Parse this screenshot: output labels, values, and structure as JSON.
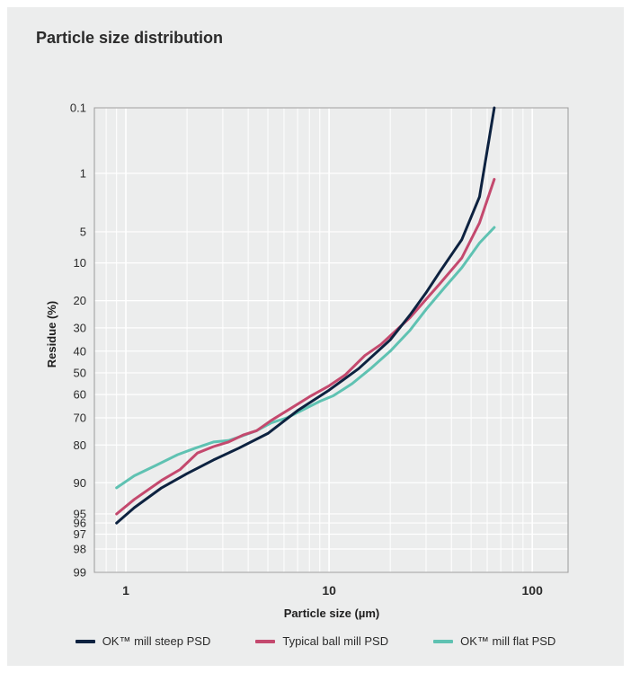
{
  "chart_data": {
    "type": "line",
    "title": "Particle size distribution",
    "xlabel": "Particle size (µm)",
    "ylabel": "Residue (%)",
    "x_scale": "log",
    "y_scale": "probability",
    "xlim": [
      0.7,
      150
    ],
    "ylim": [
      0.1,
      99
    ],
    "grid": true,
    "legend_position": "bottom",
    "x_ticks": [
      {
        "value": 1,
        "label": "1"
      },
      {
        "value": 10,
        "label": "10"
      },
      {
        "value": 100,
        "label": "100"
      }
    ],
    "y_ticks": [
      {
        "value": 0.1,
        "label": "0.1"
      },
      {
        "value": 1,
        "label": "1"
      },
      {
        "value": 5,
        "label": "5"
      },
      {
        "value": 10,
        "label": "10"
      },
      {
        "value": 20,
        "label": "20"
      },
      {
        "value": 30,
        "label": "30"
      },
      {
        "value": 40,
        "label": "40"
      },
      {
        "value": 50,
        "label": "50"
      },
      {
        "value": 60,
        "label": "60"
      },
      {
        "value": 70,
        "label": "70"
      },
      {
        "value": 80,
        "label": "80"
      },
      {
        "value": 90,
        "label": "90"
      },
      {
        "value": 95,
        "label": "95"
      },
      {
        "value": 96,
        "label": "96"
      },
      {
        "value": 97,
        "label": "97"
      },
      {
        "value": 98,
        "label": "98"
      },
      {
        "value": 99,
        "label": "99"
      }
    ],
    "series": [
      {
        "name": "OK™ mill steep PSD",
        "color": "#0d2240",
        "x": [
          0.9,
          1.1,
          1.5,
          2.0,
          2.7,
          3.6,
          5.0,
          7.0,
          10,
          14,
          20,
          25,
          30,
          35,
          45,
          55,
          65
        ],
        "y": [
          96,
          94.2,
          91,
          88,
          84.5,
          81,
          76,
          67,
          58,
          48,
          35,
          25,
          17.5,
          12,
          6,
          2,
          0.1
        ]
      },
      {
        "name": "Typical ball mill PSD",
        "color": "#c4496e",
        "x": [
          0.9,
          1.1,
          1.5,
          1.85,
          2.25,
          2.7,
          3.2,
          3.8,
          4.4,
          5.2,
          6.5,
          8.0,
          10,
          12,
          15,
          18,
          25,
          35,
          45,
          55,
          65
        ],
        "y": [
          95,
          93,
          89.5,
          87,
          82.5,
          80.5,
          79,
          76.5,
          75,
          71,
          66,
          61,
          56,
          51,
          42,
          37,
          26,
          15,
          9,
          4,
          1.2
        ]
      },
      {
        "name": "OK™ mill flat PSD",
        "color": "#5fc2b2",
        "x": [
          0.9,
          1.1,
          1.4,
          1.8,
          2.2,
          2.7,
          3.2,
          3.7,
          4.4,
          5.2,
          6.2,
          7.5,
          9.0,
          10.5,
          13,
          16,
          20,
          25,
          30,
          37,
          45,
          55,
          65
        ],
        "y": [
          91,
          88.5,
          86,
          83,
          81,
          79,
          78.5,
          77,
          75,
          72,
          70,
          66.5,
          63,
          60.5,
          55,
          48,
          40,
          31,
          23,
          16,
          11,
          6.5,
          4.5
        ]
      }
    ]
  }
}
